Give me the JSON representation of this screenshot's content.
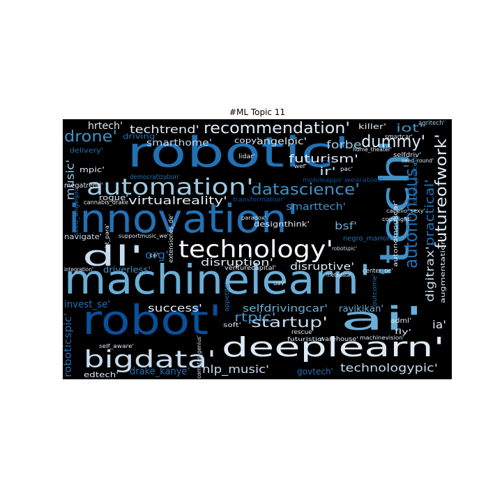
{
  "title": "#ML Topic 11",
  "colors": {
    "background": "#000000",
    "palette": [
      "#08306b",
      "#08519c",
      "#2171b5",
      "#4292c6",
      "#6baed6",
      "#9ecae1",
      "#c6dbef",
      "#deebf7",
      "#f7fbff"
    ]
  },
  "words": [
    {
      "text": "machinelearn'",
      "c": 4
    },
    {
      "text": "innovation'",
      "c": 2
    },
    {
      "text": "robotic'",
      "c": 2
    },
    {
      "text": "robot'",
      "c": 1
    },
    {
      "text": "deeplearn'",
      "c": 7
    },
    {
      "text": "'tech'",
      "c": 3
    },
    {
      "text": "ai'",
      "c": 4
    },
    {
      "text": "technology'",
      "c": 8
    },
    {
      "text": "dl'",
      "c": 6
    },
    {
      "text": "bigdata'",
      "c": 6
    },
    {
      "text": "automation'",
      "c": 5
    },
    {
      "text": "recommendation'",
      "c": 7
    },
    {
      "text": "autonomous'",
      "c": 2
    },
    {
      "text": "futureofwork'",
      "c": 7
    },
    {
      "text": "datascience'",
      "c": 3
    },
    {
      "text": "startup'",
      "c": 6
    },
    {
      "text": "dummy'",
      "c": 7
    },
    {
      "text": "drone'",
      "c": 3
    },
    {
      "text": "practical'",
      "c": 2
    },
    {
      "text": "techtrend'",
      "c": 7
    },
    {
      "text": "virtualreality'",
      "c": 7
    },
    {
      "text": "futurism'",
      "c": 7
    },
    {
      "text": "technologypic'",
      "c": 6
    },
    {
      "text": "nlp_music'",
      "c": 6
    },
    {
      "text": "success'",
      "c": 7
    },
    {
      "text": "disruptive'",
      "c": 7
    },
    {
      "text": "disruption'",
      "c": 7
    },
    {
      "text": "selfdrivingcar'",
      "c": 4
    },
    {
      "text": "forbe'",
      "c": 5
    },
    {
      "text": "iot'",
      "c": 3
    },
    {
      "text": "music'",
      "c": 5
    },
    {
      "text": "smarthome'",
      "c": 6
    },
    {
      "text": "angelpic'",
      "c": 7
    },
    {
      "text": "rtpic'",
      "c": 3
    },
    {
      "text": "digitrax'",
      "c": 6
    },
    {
      "text": "ia'",
      "c": 7
    },
    {
      "text": "ir'",
      "c": 6
    },
    {
      "text": "bsf'",
      "c": 4
    },
    {
      "text": "org'",
      "c": 2
    },
    {
      "text": "smarttech'",
      "c": 3
    },
    {
      "text": "hrtech'",
      "c": 7
    },
    {
      "text": "mpic'",
      "c": 7
    },
    {
      "text": "rogue'",
      "c": 7
    },
    {
      "text": "invest_se'",
      "c": 2
    },
    {
      "text": "drake_kanye'",
      "c": 2
    },
    {
      "text": "roboticspic'",
      "c": 2
    },
    {
      "text": "edtech'",
      "c": 7
    },
    {
      "text": "designthink'",
      "c": 7
    },
    {
      "text": "govtech'",
      "c": 2
    },
    {
      "text": "ravikikan'",
      "c": 4
    },
    {
      "text": "driverless'",
      "c": 3
    },
    {
      "text": "navigate'",
      "c": 6
    },
    {
      "text": "killer'",
      "c": 7
    },
    {
      "text": "copy'",
      "c": 7
    },
    {
      "text": "driving'",
      "c": 2
    },
    {
      "text": "delivery'",
      "c": 2
    },
    {
      "text": "megatrend'",
      "c": 7
    },
    {
      "text": "cannabis_drake",
      "c": 7
    },
    {
      "text": "democratization'",
      "c": 2
    },
    {
      "text": "seed_angelpic'",
      "c": 2
    },
    {
      "text": "transformation'",
      "c": 1
    },
    {
      "text": "mobileapps'",
      "c": 1
    },
    {
      "text": "wearables'",
      "c": 1
    },
    {
      "text": "smartcar'",
      "c": 7
    },
    {
      "text": "agritech'",
      "c": 5
    },
    {
      "text": "home_theater'",
      "c": 7
    },
    {
      "text": "selfdriv'",
      "c": 7
    },
    {
      "text": "seed_round'",
      "c": 7
    },
    {
      "text": "lidar'",
      "c": 7
    },
    {
      "text": "wef'",
      "c": 7
    },
    {
      "text": "pac'",
      "c": 7
    },
    {
      "text": "paradox'",
      "c": 7
    },
    {
      "text": "cabelio_sexy'",
      "c": 7
    },
    {
      "text": "copyright'",
      "c": 7
    },
    {
      "text": "robotic_process'",
      "c": 2
    },
    {
      "text": "negro_marron'",
      "c": 2
    },
    {
      "text": "autonomouscar'",
      "c": 7
    },
    {
      "text": "augmentation'",
      "c": 7
    },
    {
      "text": "extensiones_de'",
      "c": 7
    },
    {
      "text": "supportmusic_we'",
      "c": 7
    },
    {
      "text": "ght_para'",
      "c": 7
    },
    {
      "text": "ce'",
      "c": 7
    },
    {
      "text": "venturecapital'",
      "c": 7
    },
    {
      "text": "uav'",
      "c": 7
    },
    {
      "text": "integration'",
      "c": 7
    },
    {
      "text": "robotspic'",
      "c": 6
    },
    {
      "text": "center_oe'",
      "c": 7
    },
    {
      "text": "metadata'",
      "c": 7
    },
    {
      "text": "appetite'",
      "c": 2
    },
    {
      "text": "soft'",
      "c": 7
    },
    {
      "text": "self_aware'",
      "c": 7
    },
    {
      "text": "cornetas_genius'",
      "c": 7
    },
    {
      "text": "outcome'",
      "c": 2
    },
    {
      "text": "adml'",
      "c": 7
    },
    {
      "text": "fly'",
      "c": 7
    },
    {
      "text": "rescue'",
      "c": 7
    },
    {
      "text": "warehouse'",
      "c": 7
    },
    {
      "text": "machinevision'",
      "c": 7
    },
    {
      "text": "futuristic'",
      "c": 7
    },
    {
      "text": "'cs'",
      "c": 2
    }
  ]
}
